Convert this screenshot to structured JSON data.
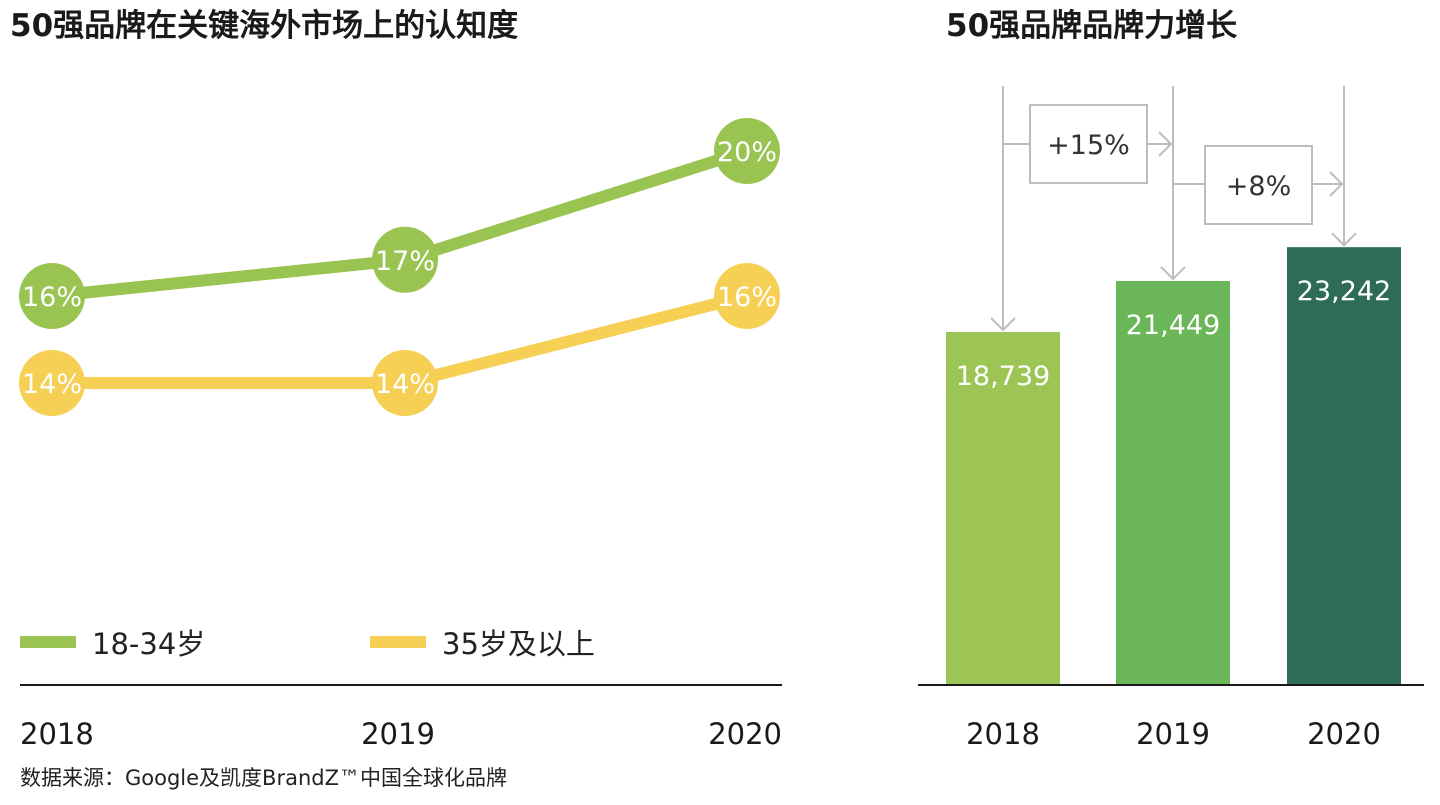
{
  "source_note": "数据来源：Google及凯度BrandZ™中国全球化品牌",
  "chart_data": [
    {
      "type": "line",
      "title": "50强品牌在关键海外市场上的认知度",
      "x": [
        "2018",
        "2019",
        "2020"
      ],
      "series": [
        {
          "name": "18-34岁",
          "values": [
            16,
            17,
            20
          ],
          "labels": [
            "16%",
            "17%",
            "20%"
          ],
          "color": "#9ac452"
        },
        {
          "name": "35岁及以上",
          "values": [
            14,
            14,
            16
          ],
          "labels": [
            "14%",
            "14%",
            "16%"
          ],
          "color": "#f6cf55"
        }
      ],
      "ylim": [
        10,
        21
      ],
      "grid": false,
      "legend_placement": "bottom"
    },
    {
      "type": "bar",
      "title": "50强品牌品牌力增长",
      "categories": [
        "2018",
        "2019",
        "2020"
      ],
      "values": [
        18739,
        21449,
        23242
      ],
      "value_labels": [
        "18,739",
        "21,449",
        "23,242"
      ],
      "colors": [
        "#9cc556",
        "#6cb65a",
        "#2e6b58"
      ],
      "annotations": [
        {
          "from": "2018",
          "to": "2019",
          "label": "+15%"
        },
        {
          "from": "2019",
          "to": "2020",
          "label": "+8%"
        }
      ],
      "ylim": [
        0,
        27000
      ],
      "grid": false
    }
  ]
}
